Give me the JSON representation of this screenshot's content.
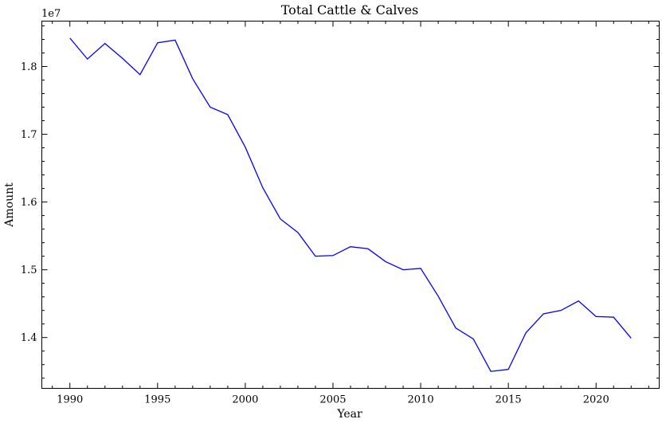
{
  "chart_data": {
    "type": "line",
    "title": "Total Cattle & Calves",
    "xlabel": "Year",
    "ylabel": "Amount",
    "y_offset_label": "1e7",
    "y_scale": 10000000,
    "xlim": [
      1988.4,
      2023.6
    ],
    "ylim": [
      13250000,
      18670000
    ],
    "x_ticks": [
      1990,
      1995,
      2000,
      2005,
      2010,
      2015,
      2020
    ],
    "x_tick_labels": [
      "1990",
      "1995",
      "2000",
      "2005",
      "2010",
      "2015",
      "2020"
    ],
    "y_ticks": [
      14000000,
      15000000,
      16000000,
      17000000,
      18000000
    ],
    "y_tick_labels": [
      "1.4",
      "1.5",
      "1.6",
      "1.7",
      "1.8"
    ],
    "grid": false,
    "legend": "none",
    "colors": {
      "series": "#0000ff",
      "axes": "#000000"
    },
    "x": [
      1990,
      1991,
      1992,
      1993,
      1994,
      1995,
      1996,
      1997,
      1998,
      1999,
      2000,
      2001,
      2002,
      2003,
      2004,
      2005,
      2006,
      2007,
      2008,
      2009,
      2010,
      2011,
      2012,
      2013,
      2014,
      2015,
      2016,
      2017,
      2018,
      2019,
      2020,
      2021,
      2022
    ],
    "series": [
      {
        "values": [
          18420000,
          18110000,
          18340000,
          18120000,
          17880000,
          18350000,
          18390000,
          17820000,
          17400000,
          17290000,
          16810000,
          16210000,
          15750000,
          15550000,
          15200000,
          15210000,
          15340000,
          15310000,
          15120000,
          15000000,
          15020000,
          14610000,
          14140000,
          13980000,
          13500000,
          13530000,
          14070000,
          14350000,
          14400000,
          14540000,
          14310000,
          14300000,
          13990000
        ]
      }
    ]
  }
}
